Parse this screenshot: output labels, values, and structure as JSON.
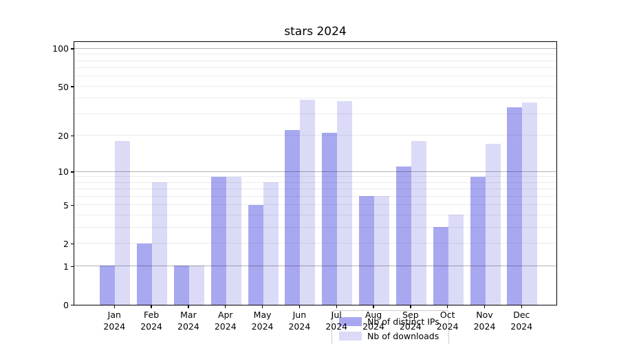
{
  "figure": {
    "title": "stars 2024"
  },
  "y_axis": {
    "ticks": [
      {
        "label": "100",
        "value": 100
      },
      {
        "label": "50",
        "value": 50
      },
      {
        "label": "20",
        "value": 20
      },
      {
        "label": "10",
        "value": 10
      },
      {
        "label": "5",
        "value": 5
      },
      {
        "label": "2",
        "value": 2
      },
      {
        "label": "1",
        "value": 1
      },
      {
        "label": "0",
        "value": 0
      }
    ]
  },
  "x_axis": {
    "labels": [
      {
        "month": "Jan",
        "year": "2024"
      },
      {
        "month": "Feb",
        "year": "2024"
      },
      {
        "month": "Mar",
        "year": "2024"
      },
      {
        "month": "Apr",
        "year": "2024"
      },
      {
        "month": "May",
        "year": "2024"
      },
      {
        "month": "Jun",
        "year": "2024"
      },
      {
        "month": "Jul",
        "year": "2024"
      },
      {
        "month": "Aug",
        "year": "2024"
      },
      {
        "month": "Sep",
        "year": "2024"
      },
      {
        "month": "Oct",
        "year": "2024"
      },
      {
        "month": "Nov",
        "year": "2024"
      },
      {
        "month": "Dec",
        "year": "2024"
      }
    ]
  },
  "legend": {
    "items": [
      {
        "label": "Nb of distinct IPs",
        "color": "#a8a8f1"
      },
      {
        "label": "Nb of downloads",
        "color": "#dbdbf8"
      }
    ]
  },
  "chart_data": {
    "type": "bar",
    "title": "stars 2024",
    "categories": [
      "Jan 2024",
      "Feb 2024",
      "Mar 2024",
      "Apr 2024",
      "May 2024",
      "Jun 2024",
      "Jul 2024",
      "Aug 2024",
      "Sep 2024",
      "Oct 2024",
      "Nov 2024",
      "Dec 2024"
    ],
    "series": [
      {
        "name": "Nb of distinct IPs",
        "key": "distinct-ips",
        "color": "#a8a8f1",
        "values": [
          1,
          2,
          1,
          9,
          5,
          22,
          21,
          6,
          11,
          3,
          9,
          34
        ]
      },
      {
        "name": "Nb of downloads",
        "key": "downloads",
        "color": "#dbdbf8",
        "values": [
          18,
          8,
          1,
          9,
          8,
          39,
          38,
          6,
          18,
          4,
          17,
          37
        ]
      }
    ],
    "xlabel": "",
    "ylabel": "",
    "yscale": "symlog-like (position proportional to log10(1+value))",
    "ylim": [
      0,
      115
    ],
    "yticks": [
      0,
      1,
      2,
      5,
      10,
      20,
      50,
      100
    ],
    "grid": true,
    "major_gridlines": [
      1,
      10,
      100
    ],
    "minor_gridlines": [
      2,
      3,
      4,
      5,
      6,
      7,
      8,
      9,
      20,
      30,
      40,
      50,
      60,
      70,
      80,
      90
    ],
    "legend_position": "lower center, inside axes",
    "bar_layout": "grouped pairs, distinct-IPs bar left of month tick, downloads bar right"
  }
}
